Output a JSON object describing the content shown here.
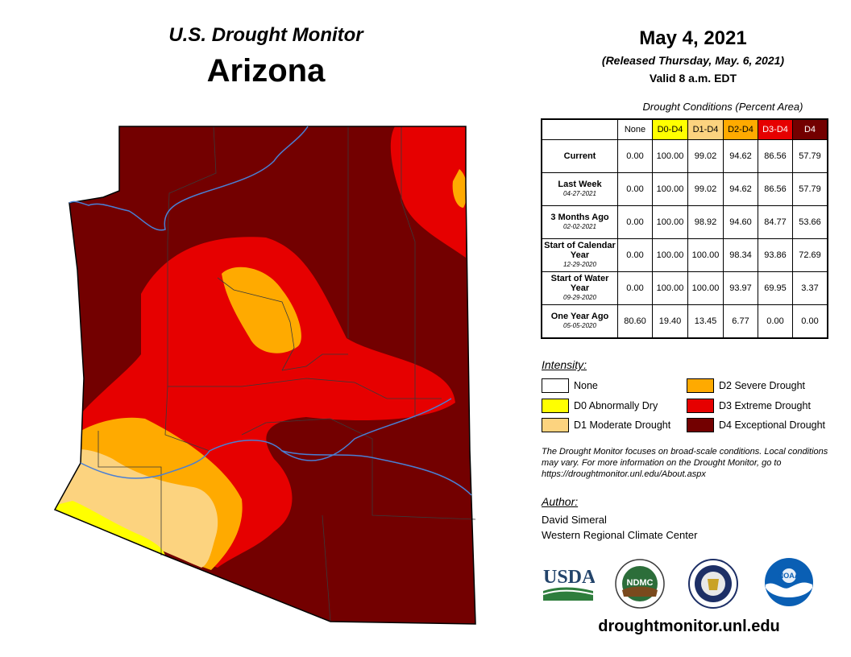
{
  "header": {
    "title": "U.S. Drought Monitor",
    "state": "Arizona",
    "date": "May 4, 2021",
    "released": "(Released Thursday, May. 6, 2021)",
    "valid": "Valid 8 a.m. EDT"
  },
  "table": {
    "caption": "Drought Conditions (Percent Area)",
    "columns": [
      "None",
      "D0-D4",
      "D1-D4",
      "D2-D4",
      "D3-D4",
      "D4"
    ],
    "column_colors": [
      "#ffffff",
      "#ffff00",
      "#fcd37f",
      "#ffaa00",
      "#e60000",
      "#730000"
    ],
    "column_text_colors": [
      "#000000",
      "#000000",
      "#000000",
      "#000000",
      "#ffffff",
      "#ffffff"
    ],
    "rows": [
      {
        "label": "Current",
        "date": "",
        "values": [
          "0.00",
          "100.00",
          "99.02",
          "94.62",
          "86.56",
          "57.79"
        ]
      },
      {
        "label": "Last Week",
        "date": "04-27-2021",
        "values": [
          "0.00",
          "100.00",
          "99.02",
          "94.62",
          "86.56",
          "57.79"
        ]
      },
      {
        "label": "3 Months Ago",
        "date": "02-02-2021",
        "values": [
          "0.00",
          "100.00",
          "98.92",
          "94.60",
          "84.77",
          "53.66"
        ]
      },
      {
        "label": "Start of Calendar Year",
        "date": "12-29-2020",
        "values": [
          "0.00",
          "100.00",
          "100.00",
          "98.34",
          "93.86",
          "72.69"
        ]
      },
      {
        "label": "Start of Water Year",
        "date": "09-29-2020",
        "values": [
          "0.00",
          "100.00",
          "100.00",
          "93.97",
          "69.95",
          "3.37"
        ]
      },
      {
        "label": "One Year Ago",
        "date": "05-05-2020",
        "values": [
          "80.60",
          "19.40",
          "13.45",
          "6.77",
          "0.00",
          "0.00"
        ]
      }
    ]
  },
  "legend": {
    "heading": "Intensity:",
    "items": [
      {
        "label": "None",
        "color": "#ffffff"
      },
      {
        "label": "D0 Abnormally Dry",
        "color": "#ffff00"
      },
      {
        "label": "D1 Moderate Drought",
        "color": "#fcd37f"
      },
      {
        "label": "D2 Severe Drought",
        "color": "#ffaa00"
      },
      {
        "label": "D3 Extreme Drought",
        "color": "#e60000"
      },
      {
        "label": "D4 Exceptional Drought",
        "color": "#730000"
      }
    ]
  },
  "note": "The Drought Monitor focuses on broad-scale conditions. Local conditions may vary. For more information on the Drought Monitor, go to https://droughtmonitor.unl.edu/About.aspx",
  "author": {
    "heading": "Author:",
    "name": "David Simeral",
    "org": "Western Regional Climate Center"
  },
  "logos": {
    "usda": "USDA",
    "ndmc": "NDMC",
    "noaa": "NOAA"
  },
  "website": "droughtmonitor.unl.edu"
}
